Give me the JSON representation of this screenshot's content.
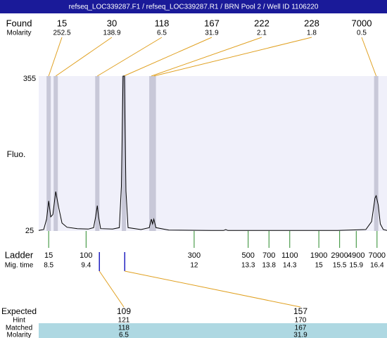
{
  "header": {
    "title": "refseq_LOC339287.F1 / refseq_LOC339287.R1 / BRN Pool 2 / Well ID 1106220"
  },
  "chart_data": {
    "type": "line",
    "y_label": "Fluo.",
    "xlim": [
      8.26,
      16.64
    ],
    "ylim": [
      25,
      355
    ],
    "yticks": [
      25,
      355
    ],
    "x": [
      8.26,
      8.38,
      8.45,
      8.5,
      8.55,
      8.6,
      8.67,
      8.74,
      8.82,
      8.94,
      9.19,
      9.45,
      9.58,
      9.63,
      9.67,
      9.7,
      9.75,
      10.04,
      10.2,
      10.25,
      10.29,
      10.32,
      10.36,
      10.41,
      10.72,
      10.92,
      10.97,
      11.0,
      11.03,
      11.08,
      11.39,
      12.41,
      12.71,
      12.76,
      12.81,
      14.1,
      15.45,
      16.13,
      16.27,
      16.35,
      16.38,
      16.43,
      16.48,
      16.55,
      16.64
    ],
    "series": [
      {
        "color": "#000000",
        "values": [
          26,
          28,
          50,
          89,
          55,
          60,
          109,
          75,
          42,
          33,
          30,
          29,
          32,
          55,
          79,
          55,
          30,
          29,
          32,
          120,
          355,
          355,
          110,
          32,
          28,
          32,
          50,
          40,
          50,
          32,
          27,
          26,
          26,
          28,
          26,
          26,
          26,
          28,
          45,
          95,
          100,
          80,
          40,
          28,
          26
        ]
      }
    ],
    "found": {
      "label": "Found",
      "molarity_label": "Molarity",
      "sizes": [
        15,
        30,
        118,
        167,
        222,
        228,
        7000
      ],
      "molarity": [
        252.5,
        138.9,
        6.5,
        31.9,
        2.1,
        1.8,
        0.5
      ],
      "times": [
        8.5,
        8.67,
        9.67,
        10.31,
        10.97,
        11.03,
        16.38
      ]
    },
    "ladder": {
      "label": "Ladder",
      "time_label": "Mig. time",
      "sizes": [
        15,
        100,
        300,
        500,
        700,
        1100,
        1900,
        2900,
        4900,
        7000
      ],
      "times": [
        8.5,
        9.4,
        12,
        13.3,
        13.8,
        14.3,
        15,
        15.5,
        15.9,
        16.4
      ]
    },
    "expected": {
      "label": "Expected",
      "hint_label": "Hint",
      "matched_label": "Matched",
      "molarity_label": "Molarity",
      "sizes": [
        109,
        157
      ],
      "hint": [
        121,
        170
      ],
      "matched": [
        118,
        167
      ],
      "molarity": [
        6.5,
        31.9
      ],
      "times": [
        9.72,
        10.33
      ]
    }
  }
}
